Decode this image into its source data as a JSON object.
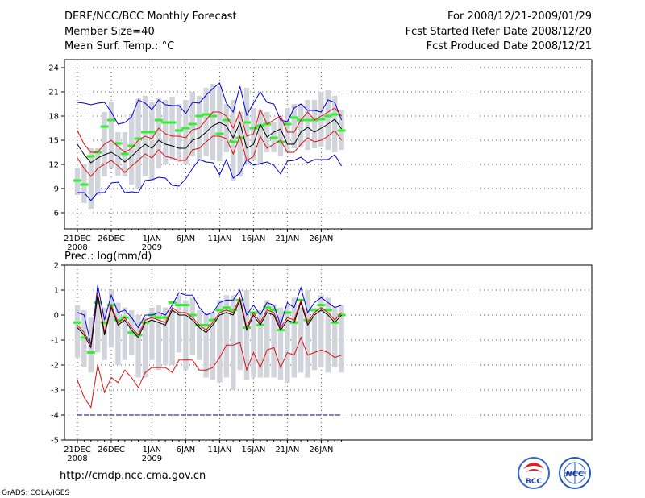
{
  "header": {
    "title": "DERF/NCC/BCC Monthly Forecast",
    "member_size": "Member Size=40",
    "variable": "Mean Surf. Temp.: °C",
    "period": "For 2008/12/21-2009/01/29",
    "started": "Fcst Started Refer Date 2008/12/20",
    "produced": "Fcst Produced Date 2008/12/21"
  },
  "footer": {
    "url": "http://cmdp.ncc.cma.gov.cn",
    "credit": "GrADS: COLA/IGES",
    "logo_bcc": "BCC",
    "logo_ncc": "NCC"
  },
  "x_axis": {
    "ticks": [
      {
        "day": 1,
        "label": "21DEC",
        "sub": "2008"
      },
      {
        "day": 6,
        "label": "26DEC",
        "sub": ""
      },
      {
        "day": 12,
        "label": "1JAN",
        "sub": "2009"
      },
      {
        "day": 17,
        "label": "6JAN",
        "sub": ""
      },
      {
        "day": 22,
        "label": "11JAN",
        "sub": ""
      },
      {
        "day": 27,
        "label": "16JAN",
        "sub": ""
      },
      {
        "day": 32,
        "label": "21JAN",
        "sub": ""
      },
      {
        "day": 37,
        "label": "26JAN",
        "sub": ""
      }
    ]
  },
  "colors": {
    "box": "#d2d4dc",
    "median": "#33ee33",
    "mean": "#000000",
    "inner": "#dd1111",
    "outer": "#0000dd",
    "floor": "#000088",
    "grid": "#555555"
  },
  "chart_data": [
    {
      "type": "line",
      "title": "Mean Surf. Temp.: °C",
      "ylim": [
        4,
        25
      ],
      "yticks": [
        6,
        9,
        12,
        15,
        18,
        21,
        24
      ],
      "x": [
        1,
        2,
        3,
        4,
        5,
        6,
        7,
        8,
        9,
        10,
        11,
        12,
        13,
        14,
        15,
        16,
        17,
        18,
        19,
        20,
        21,
        22,
        23,
        24,
        25,
        26,
        27,
        28,
        29,
        30,
        31,
        32,
        33,
        34,
        35,
        36,
        37,
        38,
        39,
        40
      ],
      "series": [
        {
          "name": "box_low",
          "values": [
            8.2,
            7.2,
            6.5,
            8.2,
            10.5,
            11.5,
            10.6,
            10.5,
            9.5,
            9.0,
            10.5,
            10.0,
            11.5,
            12.0,
            12.5,
            12.3,
            12.0,
            13.0,
            12.4,
            13.0,
            12.5,
            12.4,
            13.5,
            10.0,
            10.5,
            12.0,
            12.5,
            12.0,
            13.5,
            13.5,
            13.0,
            13.5,
            14.0,
            14.2,
            13.8,
            14.0,
            14.2,
            13.8,
            13.5,
            13.8
          ]
        },
        {
          "name": "box_high",
          "values": [
            11.5,
            12.0,
            14.0,
            14.0,
            18.5,
            19.8,
            16.0,
            16.0,
            18.3,
            20.2,
            20.5,
            19.8,
            20.2,
            20.0,
            20.4,
            19.5,
            20.0,
            21.0,
            20.5,
            21.5,
            22.0,
            21.7,
            19.5,
            20.0,
            18.5,
            21.5,
            19.0,
            18.8,
            18.5,
            17.2,
            18.0,
            19.0,
            19.5,
            19.5,
            20.0,
            20.0,
            21.0,
            21.2,
            20.5,
            18.8
          ]
        },
        {
          "name": "median",
          "values": [
            10.0,
            9.5,
            13.0,
            13.5,
            16.7,
            17.5,
            14.6,
            13.3,
            14.3,
            15.2,
            16.0,
            16.0,
            17.5,
            17.2,
            17.2,
            16.2,
            16.5,
            17.0,
            18.0,
            18.2,
            18.0,
            15.8,
            17.5,
            14.8,
            15.3,
            17.2,
            16.5,
            16.8,
            17.0,
            15.3,
            14.8,
            17.0,
            17.8,
            17.5,
            17.5,
            17.5,
            17.6,
            18.0,
            18.2,
            16.2
          ]
        },
        {
          "name": "mean",
          "values": [
            14.5,
            13.2,
            12.2,
            12.8,
            13.2,
            13.5,
            13.0,
            12.3,
            13.0,
            13.8,
            14.5,
            14.0,
            15.0,
            14.5,
            14.3,
            14.0,
            14.0,
            15.0,
            15.3,
            16.0,
            16.8,
            17.2,
            16.8,
            15.3,
            17.2,
            14.0,
            14.5,
            17.0,
            15.4,
            16.0,
            16.4,
            14.5,
            14.5,
            16.0,
            16.6,
            16.0,
            16.5,
            17.0,
            17.6,
            16.4
          ]
        },
        {
          "name": "inner_upper",
          "values": [
            16.2,
            14.5,
            13.5,
            13.5,
            14.5,
            15.0,
            14.2,
            13.5,
            14.0,
            15.0,
            15.5,
            15.2,
            16.5,
            15.8,
            15.5,
            15.5,
            15.3,
            16.3,
            16.5,
            17.5,
            18.5,
            18.5,
            18.0,
            16.5,
            18.5,
            15.5,
            15.8,
            18.8,
            17.0,
            17.5,
            18.0,
            16.0,
            16.0,
            17.5,
            18.5,
            17.5,
            18.0,
            18.5,
            19.0,
            18.0
          ]
        },
        {
          "name": "inner_lower",
          "values": [
            12.8,
            11.5,
            10.5,
            11.5,
            12.0,
            12.5,
            11.8,
            11.0,
            11.8,
            12.5,
            13.3,
            12.8,
            13.8,
            13.0,
            12.8,
            12.5,
            12.5,
            13.8,
            14.0,
            14.8,
            15.5,
            15.5,
            15.2,
            13.3,
            15.5,
            12.5,
            13.0,
            15.5,
            14.0,
            14.5,
            15.0,
            13.5,
            13.5,
            14.5,
            15.3,
            14.8,
            15.0,
            15.5,
            16.2,
            15.0
          ]
        },
        {
          "name": "outer_upper",
          "values": [
            19.7,
            19.6,
            19.4,
            19.6,
            19.7,
            18.5,
            17.0,
            17.2,
            17.9,
            20.0,
            19.6,
            18.8,
            20.0,
            19.4,
            19.3,
            19.3,
            18.3,
            19.7,
            19.6,
            20.6,
            21.4,
            22.1,
            19.6,
            18.5,
            21.7,
            18.1,
            19.6,
            21.0,
            19.7,
            19.5,
            17.5,
            17.3,
            19.0,
            19.5,
            18.7,
            18.7,
            18.5,
            20.0,
            19.7,
            17.5
          ]
        },
        {
          "name": "outer_lower",
          "values": [
            8.5,
            8.5,
            7.5,
            8.5,
            8.5,
            9.7,
            9.8,
            8.5,
            8.6,
            8.5,
            10.0,
            10.1,
            10.4,
            10.3,
            9.4,
            9.3,
            10.2,
            11.5,
            12.6,
            12.3,
            12.2,
            10.7,
            12.6,
            10.3,
            10.9,
            12.6,
            11.9,
            12.1,
            12.3,
            11.9,
            10.8,
            12.4,
            12.5,
            12.9,
            12.2,
            12.6,
            12.6,
            12.6,
            13.2,
            11.8
          ]
        }
      ]
    },
    {
      "type": "line",
      "title": "Prec.: log(mm/d)",
      "ylim": [
        -5,
        2
      ],
      "yticks": [
        -5,
        -4,
        -3,
        -2,
        -1,
        0,
        1,
        2
      ],
      "x": [
        1,
        2,
        3,
        4,
        5,
        6,
        7,
        8,
        9,
        10,
        11,
        12,
        13,
        14,
        15,
        16,
        17,
        18,
        19,
        20,
        21,
        22,
        23,
        24,
        25,
        26,
        27,
        28,
        29,
        30,
        31,
        32,
        33,
        34,
        35,
        36,
        37,
        38,
        39,
        40
      ],
      "series": [
        {
          "name": "box_low",
          "values": [
            -1.7,
            -2.1,
            -2.3,
            -1.5,
            -1.8,
            -1.3,
            -2.0,
            -1.8,
            -1.6,
            -2.5,
            -2.5,
            -1.8,
            -2.2,
            -2.0,
            -2.0,
            -1.5,
            -2.2,
            -1.6,
            -1.8,
            -2.5,
            -2.6,
            -2.7,
            -2.5,
            -3.0,
            -2.2,
            -2.6,
            -2.5,
            -2.5,
            -2.5,
            -2.5,
            -2.6,
            -2.7,
            -2.5,
            -2.3,
            -2.5,
            -2.2,
            -2.1,
            -2.3,
            -2.1,
            -2.3
          ]
        },
        {
          "name": "box_high",
          "values": [
            0.4,
            0.2,
            -0.1,
            0.6,
            0.3,
            1.0,
            0.5,
            0.3,
            0.2,
            0.0,
            -0.1,
            0.3,
            0.4,
            0.3,
            0.2,
            0.8,
            0.6,
            0.7,
            0.2,
            0.1,
            0.1,
            0.6,
            0.8,
            0.8,
            0.6,
            1.0,
            0.1,
            0.2,
            0.6,
            0.4,
            0.3,
            0.4,
            0.7,
            0.3,
            1.0,
            0.3,
            0.8,
            0.7,
            0.3,
            0.4
          ]
        },
        {
          "name": "median",
          "values": [
            -0.3,
            -0.9,
            -1.5,
            0.5,
            -0.3,
            0.4,
            -0.2,
            -0.1,
            -0.7,
            -0.8,
            -0.3,
            0.0,
            -0.1,
            -0.1,
            0.5,
            0.4,
            0.4,
            0.0,
            -0.4,
            -0.4,
            -0.2,
            0.2,
            0.3,
            0.2,
            0.6,
            -0.5,
            0.1,
            -0.4,
            0.3,
            0.2,
            -0.6,
            0.1,
            -0.3,
            0.6,
            -0.2,
            0.2,
            0.4,
            0.2,
            -0.3,
            0.0
          ]
        },
        {
          "name": "mean",
          "values": [
            -0.5,
            -0.8,
            -1.3,
            0.8,
            -0.8,
            0.3,
            -0.4,
            -0.2,
            -0.6,
            -0.9,
            -0.3,
            -0.2,
            -0.3,
            -0.4,
            0.2,
            0.0,
            0.0,
            -0.2,
            -0.5,
            -0.7,
            -0.4,
            0.0,
            0.1,
            0.0,
            0.6,
            -0.6,
            0.0,
            -0.4,
            0.1,
            0.0,
            -0.6,
            -0.2,
            -0.3,
            0.5,
            -0.4,
            0.0,
            0.2,
            0.0,
            -0.3,
            0.0
          ]
        },
        {
          "name": "inner_upper",
          "values": [
            -0.4,
            -0.7,
            -1.2,
            0.9,
            -0.7,
            0.4,
            -0.3,
            -0.1,
            -0.5,
            -0.8,
            -0.2,
            -0.1,
            -0.2,
            -0.3,
            0.3,
            0.1,
            0.1,
            -0.1,
            -0.4,
            -0.6,
            -0.3,
            0.1,
            0.2,
            0.1,
            0.7,
            -0.5,
            0.1,
            -0.3,
            0.2,
            0.1,
            -0.5,
            -0.1,
            -0.2,
            0.6,
            -0.3,
            0.1,
            0.3,
            0.1,
            -0.2,
            0.1
          ]
        },
        {
          "name": "inner_lower",
          "values": [
            -2.6,
            -3.3,
            -3.7,
            -2.0,
            -3.1,
            -2.5,
            -2.7,
            -2.2,
            -2.5,
            -2.9,
            -2.3,
            -2.1,
            -2.1,
            -2.1,
            -2.3,
            -1.8,
            -1.8,
            -1.8,
            -2.2,
            -2.2,
            -2.1,
            -1.7,
            -1.2,
            -1.2,
            -1.1,
            -2.2,
            -1.5,
            -2.1,
            -1.4,
            -1.3,
            -2.1,
            -1.5,
            -1.6,
            -0.9,
            -1.6,
            -1.5,
            -1.4,
            -1.5,
            -1.7,
            -1.6
          ]
        },
        {
          "name": "outer_upper",
          "values": [
            0.1,
            0.0,
            -1.2,
            1.2,
            -0.2,
            0.8,
            0.1,
            0.2,
            -0.1,
            -0.5,
            0.0,
            0.0,
            0.1,
            0.0,
            0.4,
            0.9,
            0.8,
            0.8,
            0.3,
            0.0,
            0.1,
            0.5,
            0.6,
            0.6,
            1.0,
            0.0,
            0.4,
            0.0,
            0.5,
            0.4,
            -0.4,
            0.5,
            0.3,
            1.1,
            0.1,
            0.5,
            0.7,
            0.5,
            0.3,
            0.4
          ]
        },
        {
          "name": "floor",
          "values": [
            -4,
            -4,
            -4,
            -4,
            -4,
            -4,
            -4,
            -4,
            -4,
            -4,
            -4,
            -4,
            -4,
            -4,
            -4,
            -4,
            -4,
            -4,
            -4,
            -4,
            -4,
            -4,
            -4,
            -4,
            -4,
            -4,
            -4,
            -4,
            -4,
            -4,
            -4,
            -4,
            -4,
            -4,
            -4,
            -4,
            -4,
            -4,
            -4,
            -4
          ]
        }
      ]
    }
  ]
}
